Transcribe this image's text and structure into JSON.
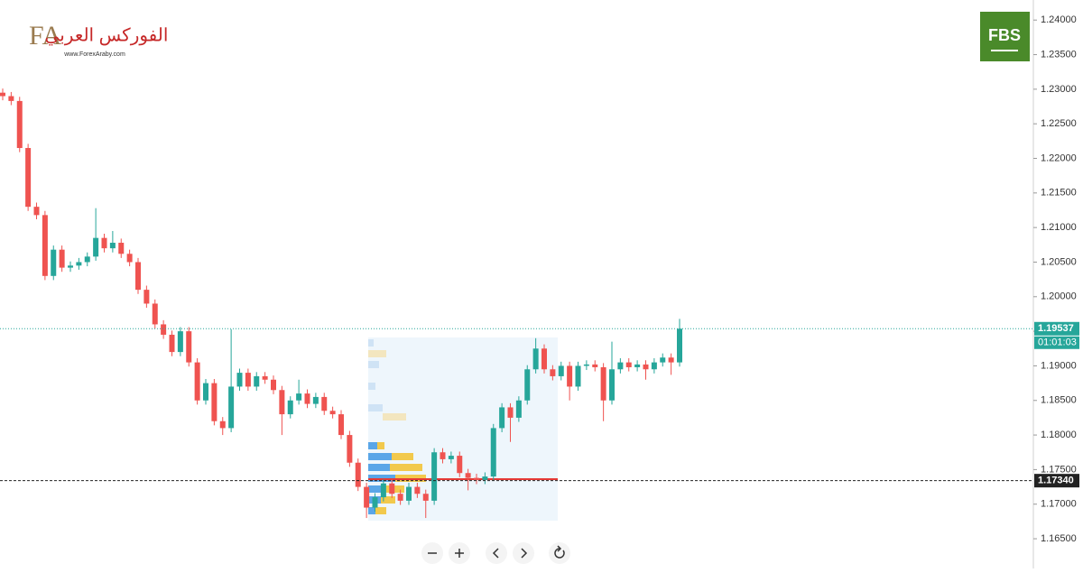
{
  "chart_data": {
    "type": "candlestick",
    "logo": {
      "mark": "FA",
      "site": "www.ForexAraby.com",
      "arabic": "الفوركس العربي"
    },
    "broker": "FBS",
    "up_color": "#26a69a",
    "down_color": "#ef5350",
    "ylim": [
      1.1607,
      1.2429
    ],
    "yticks": [
      {
        "value": 1.24,
        "label": "1.24000"
      },
      {
        "value": 1.235,
        "label": "1.23500"
      },
      {
        "value": 1.23,
        "label": "1.23000"
      },
      {
        "value": 1.225,
        "label": "1.22500"
      },
      {
        "value": 1.22,
        "label": "1.22000"
      },
      {
        "value": 1.215,
        "label": "1.21500"
      },
      {
        "value": 1.21,
        "label": "1.21000"
      },
      {
        "value": 1.205,
        "label": "1.20500"
      },
      {
        "value": 1.2,
        "label": "1.20000"
      },
      {
        "value": 1.195,
        "label": "1.19500"
      },
      {
        "value": 1.19,
        "label": "1.19000"
      },
      {
        "value": 1.185,
        "label": "1.18500"
      },
      {
        "value": 1.18,
        "label": "1.18000"
      },
      {
        "value": 1.175,
        "label": "1.17500"
      },
      {
        "value": 1.17,
        "label": "1.17000"
      },
      {
        "value": 1.165,
        "label": "1.16500"
      }
    ],
    "last_price": {
      "value": 1.19537,
      "label": "1.19537",
      "countdown": "01:01:03"
    },
    "marked_level": {
      "value": 1.1734,
      "label": "1.17340"
    },
    "open": [
      1.2295,
      1.229,
      1.2283,
      1.2215,
      1.213,
      1.2118,
      1.203,
      1.2068,
      1.2042,
      1.2045,
      1.205,
      1.2058,
      1.2085,
      1.207,
      1.2078,
      1.2062,
      1.205,
      1.201,
      1.199,
      1.196,
      1.1945,
      1.192,
      1.195,
      1.1905,
      1.185,
      1.1875,
      1.182,
      1.181,
      1.187,
      1.189,
      1.187,
      1.1885,
      1.188,
      1.1865,
      1.183,
      1.185,
      1.186,
      1.1845,
      1.1855,
      1.1835,
      1.183,
      1.18,
      1.176,
      1.1725,
      1.1695,
      1.171,
      1.173,
      1.1715,
      1.1705,
      1.1725,
      1.1715,
      1.1705,
      1.1775,
      1.1765,
      1.177,
      1.1745,
      1.1738,
      1.1735,
      1.174,
      1.181,
      1.184,
      1.1825,
      1.185,
      1.1895,
      1.1925,
      1.1895,
      1.1885,
      1.19,
      1.187,
      1.19,
      1.1902,
      1.1898,
      1.185,
      1.1895,
      1.1905,
      1.1898,
      1.1902,
      1.1895,
      1.1905,
      1.1912,
      1.1905
    ],
    "high": [
      1.2301,
      1.2296,
      1.2289,
      1.2221,
      1.2136,
      1.2124,
      1.2074,
      1.2074,
      1.2051,
      1.2056,
      1.2064,
      1.2128,
      1.2091,
      1.2095,
      1.2084,
      1.2068,
      1.2056,
      1.2016,
      1.1996,
      1.1966,
      1.1951,
      1.1956,
      1.1956,
      1.1911,
      1.1881,
      1.1881,
      1.1826,
      1.1953,
      1.1896,
      1.1896,
      1.1891,
      1.1891,
      1.1886,
      1.1871,
      1.1856,
      1.188,
      1.1866,
      1.1861,
      1.1861,
      1.1841,
      1.1836,
      1.1806,
      1.1766,
      1.1731,
      1.1716,
      1.1736,
      1.1736,
      1.1721,
      1.1731,
      1.1731,
      1.1721,
      1.1781,
      1.1781,
      1.1776,
      1.1776,
      1.1751,
      1.1744,
      1.1746,
      1.1816,
      1.1846,
      1.1846,
      1.1856,
      1.1901,
      1.194,
      1.1931,
      1.1901,
      1.1906,
      1.1906,
      1.1906,
      1.1908,
      1.1908,
      1.1904,
      1.1935,
      1.1911,
      1.1911,
      1.1908,
      1.1908,
      1.1911,
      1.1918,
      1.1918,
      1.1968
    ],
    "low": [
      1.2284,
      1.2277,
      1.2209,
      1.2124,
      1.2112,
      1.2024,
      1.2024,
      1.2036,
      1.2036,
      1.2039,
      1.2044,
      1.2052,
      1.2064,
      1.2064,
      1.2056,
      1.2044,
      1.2004,
      1.1984,
      1.1954,
      1.1939,
      1.1914,
      1.1914,
      1.1899,
      1.1844,
      1.1844,
      1.1814,
      1.18,
      1.1804,
      1.1864,
      1.1864,
      1.1864,
      1.1874,
      1.1859,
      1.18,
      1.1824,
      1.1844,
      1.1839,
      1.1839,
      1.1829,
      1.1824,
      1.1794,
      1.1754,
      1.1719,
      1.168,
      1.1689,
      1.1704,
      1.1709,
      1.1699,
      1.1699,
      1.1709,
      1.168,
      1.1699,
      1.1759,
      1.1759,
      1.1739,
      1.172,
      1.1729,
      1.1729,
      1.1734,
      1.1804,
      1.179,
      1.1819,
      1.1844,
      1.1889,
      1.1889,
      1.1879,
      1.1879,
      1.185,
      1.1864,
      1.1894,
      1.1892,
      1.182,
      1.1844,
      1.1889,
      1.1892,
      1.1892,
      1.188,
      1.1889,
      1.1899,
      1.1887,
      1.1899
    ],
    "close": [
      1.229,
      1.2283,
      1.2215,
      1.213,
      1.2118,
      1.203,
      1.2068,
      1.2042,
      1.2045,
      1.205,
      1.2058,
      1.2085,
      1.207,
      1.2078,
      1.2062,
      1.205,
      1.201,
      1.199,
      1.196,
      1.1945,
      1.192,
      1.195,
      1.1905,
      1.185,
      1.1875,
      1.182,
      1.181,
      1.187,
      1.189,
      1.187,
      1.1885,
      1.188,
      1.1865,
      1.183,
      1.185,
      1.186,
      1.1845,
      1.1855,
      1.1835,
      1.183,
      1.18,
      1.176,
      1.1725,
      1.1695,
      1.171,
      1.173,
      1.1715,
      1.1705,
      1.1725,
      1.1715,
      1.1705,
      1.1775,
      1.1765,
      1.177,
      1.1745,
      1.1738,
      1.1735,
      1.174,
      1.181,
      1.184,
      1.1825,
      1.185,
      1.1895,
      1.1925,
      1.1895,
      1.1885,
      1.19,
      1.187,
      1.19,
      1.1902,
      1.1898,
      1.185,
      1.1895,
      1.1905,
      1.1898,
      1.1902,
      1.1895,
      1.1905,
      1.1912,
      1.1905,
      1.19537
    ]
  }
}
